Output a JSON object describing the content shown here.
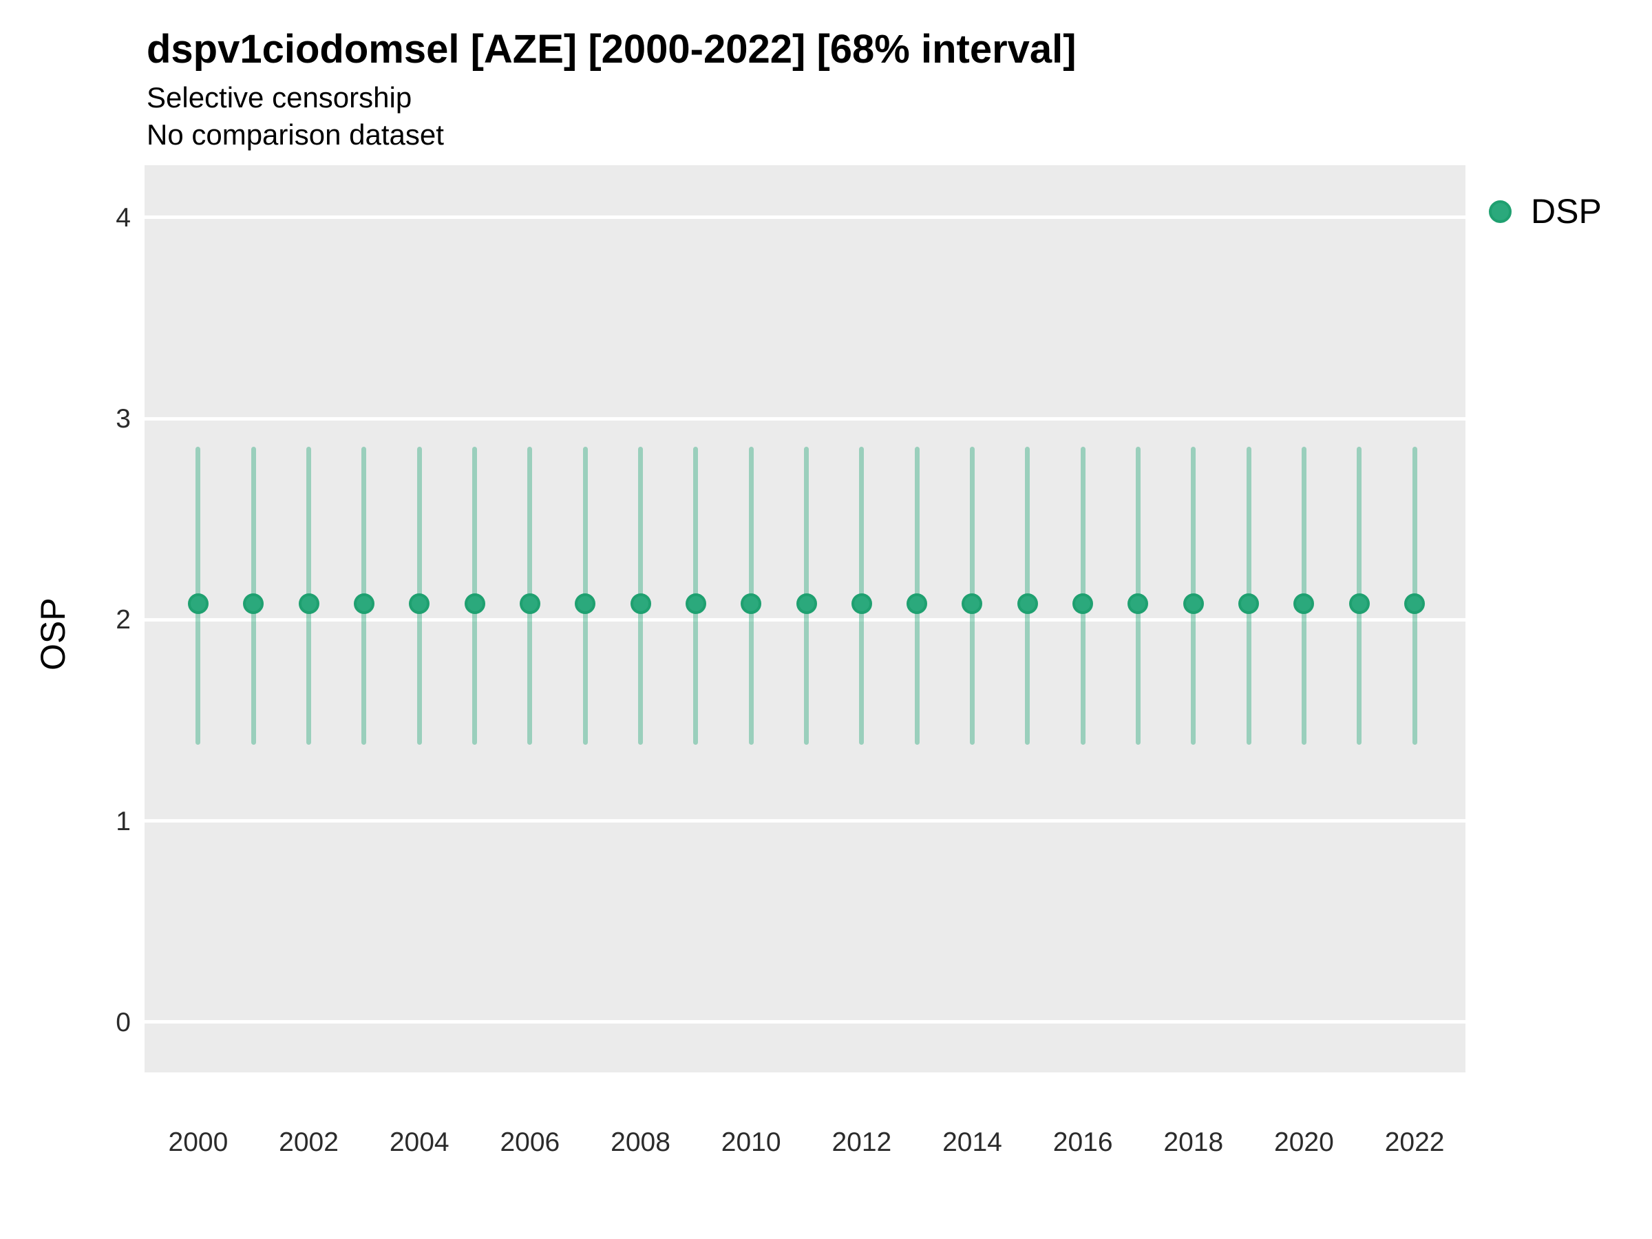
{
  "chart_data": {
    "type": "scatter",
    "subtype": "pointrange-error-bars",
    "title": "dspv1ciodomsel [AZE] [2000-2022] [68% interval]",
    "subtitle": "Selective censorship",
    "annotation": "No comparison dataset",
    "xlabel": "",
    "ylabel": "OSP",
    "interval_level": "68%",
    "grid": "major-horizontal-only",
    "legend": {
      "position": "right",
      "entries": [
        {
          "label": "DSP",
          "color": "#2BA97C",
          "border": "#1FA070"
        }
      ]
    },
    "ylim": [
      0,
      4
    ],
    "y_ticks": [
      0,
      1,
      2,
      3,
      4
    ],
    "x_ticks": [
      2000,
      2002,
      2004,
      2006,
      2008,
      2010,
      2012,
      2014,
      2016,
      2018,
      2020,
      2022
    ],
    "y_domain_display": [
      -0.25,
      4.26
    ],
    "x_domain_display": [
      1999.03,
      2022.92
    ],
    "series": [
      {
        "name": "DSP",
        "points": [
          {
            "x": 2000,
            "y": 2.08,
            "low": 1.38,
            "high": 2.86
          },
          {
            "x": 2001,
            "y": 2.08,
            "low": 1.38,
            "high": 2.86
          },
          {
            "x": 2002,
            "y": 2.08,
            "low": 1.38,
            "high": 2.86
          },
          {
            "x": 2003,
            "y": 2.08,
            "low": 1.38,
            "high": 2.86
          },
          {
            "x": 2004,
            "y": 2.08,
            "low": 1.38,
            "high": 2.86
          },
          {
            "x": 2005,
            "y": 2.08,
            "low": 1.38,
            "high": 2.86
          },
          {
            "x": 2006,
            "y": 2.08,
            "low": 1.38,
            "high": 2.86
          },
          {
            "x": 2007,
            "y": 2.08,
            "low": 1.38,
            "high": 2.86
          },
          {
            "x": 2008,
            "y": 2.08,
            "low": 1.38,
            "high": 2.86
          },
          {
            "x": 2009,
            "y": 2.08,
            "low": 1.38,
            "high": 2.86
          },
          {
            "x": 2010,
            "y": 2.08,
            "low": 1.38,
            "high": 2.86
          },
          {
            "x": 2011,
            "y": 2.08,
            "low": 1.38,
            "high": 2.86
          },
          {
            "x": 2012,
            "y": 2.08,
            "low": 1.38,
            "high": 2.86
          },
          {
            "x": 2013,
            "y": 2.08,
            "low": 1.38,
            "high": 2.86
          },
          {
            "x": 2014,
            "y": 2.08,
            "low": 1.38,
            "high": 2.86
          },
          {
            "x": 2015,
            "y": 2.08,
            "low": 1.38,
            "high": 2.86
          },
          {
            "x": 2016,
            "y": 2.08,
            "low": 1.38,
            "high": 2.86
          },
          {
            "x": 2017,
            "y": 2.08,
            "low": 1.38,
            "high": 2.86
          },
          {
            "x": 2018,
            "y": 2.08,
            "low": 1.38,
            "high": 2.86
          },
          {
            "x": 2019,
            "y": 2.08,
            "low": 1.38,
            "high": 2.86
          },
          {
            "x": 2020,
            "y": 2.08,
            "low": 1.38,
            "high": 2.86
          },
          {
            "x": 2021,
            "y": 2.08,
            "low": 1.38,
            "high": 2.86
          },
          {
            "x": 2022,
            "y": 2.08,
            "low": 1.38,
            "high": 2.86
          }
        ]
      }
    ],
    "colors": {
      "point_fill": "#2BA97C",
      "point_border": "#1FA070",
      "interval_bar": "rgba(43,169,124,0.42)",
      "panel_background": "#EBEBEB",
      "gridline": "#FFFFFF",
      "tick_label": "#2b2b2b",
      "text": "#000000"
    }
  }
}
